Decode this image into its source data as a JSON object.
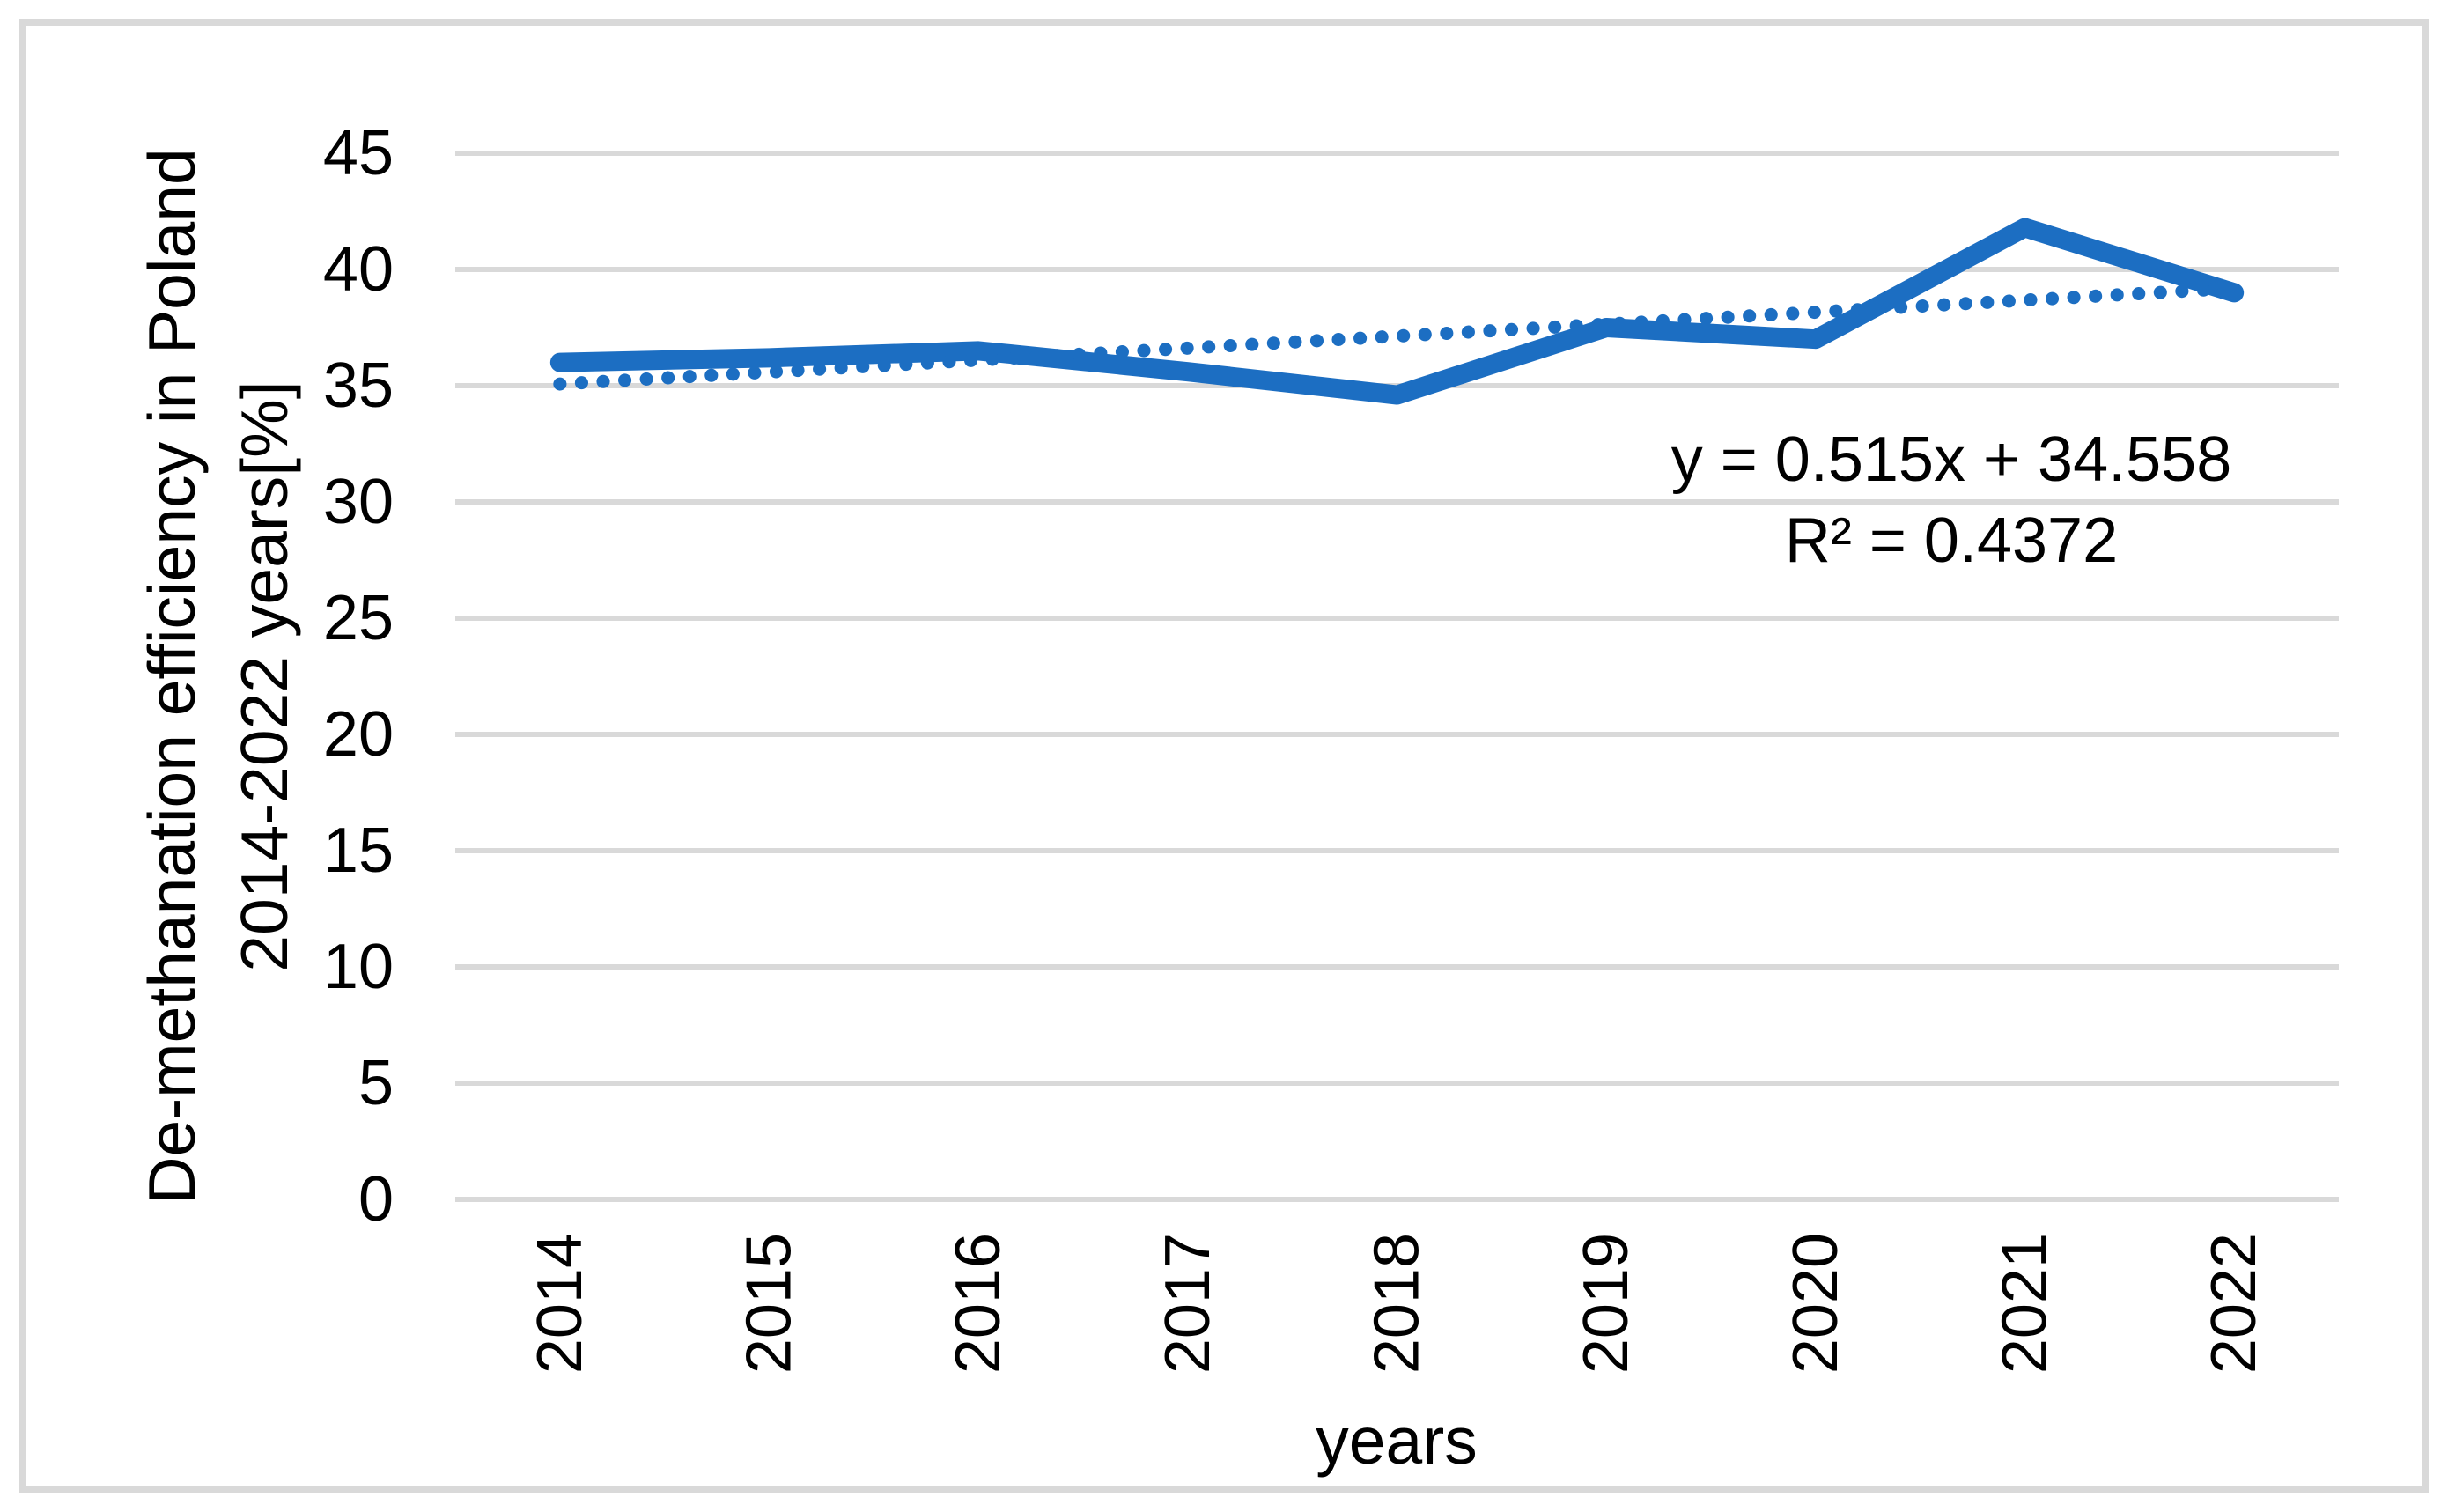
{
  "chart_data": {
    "type": "line",
    "x_categories": [
      "2014",
      "2015",
      "2016",
      "2017",
      "2018",
      "2019",
      "2020",
      "2021",
      "2022"
    ],
    "series": [
      {
        "name": "De-methanation efficiency in Poland",
        "style": "solid",
        "values": [
          36.0,
          36.2,
          36.5,
          35.6,
          34.6,
          37.5,
          37.0,
          41.8,
          39.0
        ]
      }
    ],
    "trendline": {
      "style": "dotted",
      "slope": 0.515,
      "intercept": 34.558,
      "label": "y = 0.515x + 34.558",
      "r2": 0.4372,
      "r2_label": "R² = 0.4372"
    },
    "ylabel_line1": "De-methanation efficiency in Poland",
    "ylabel_line2": "2014-2022 years[%]",
    "xlabel": "years",
    "ylim": [
      0,
      45
    ],
    "ytick_step": 5,
    "grid": "horizontal",
    "legend": "none",
    "colors": {
      "line": "#1C6EC2",
      "grid": "#D9D9D9",
      "border": "#D9D9D9",
      "text": "#000000"
    }
  }
}
